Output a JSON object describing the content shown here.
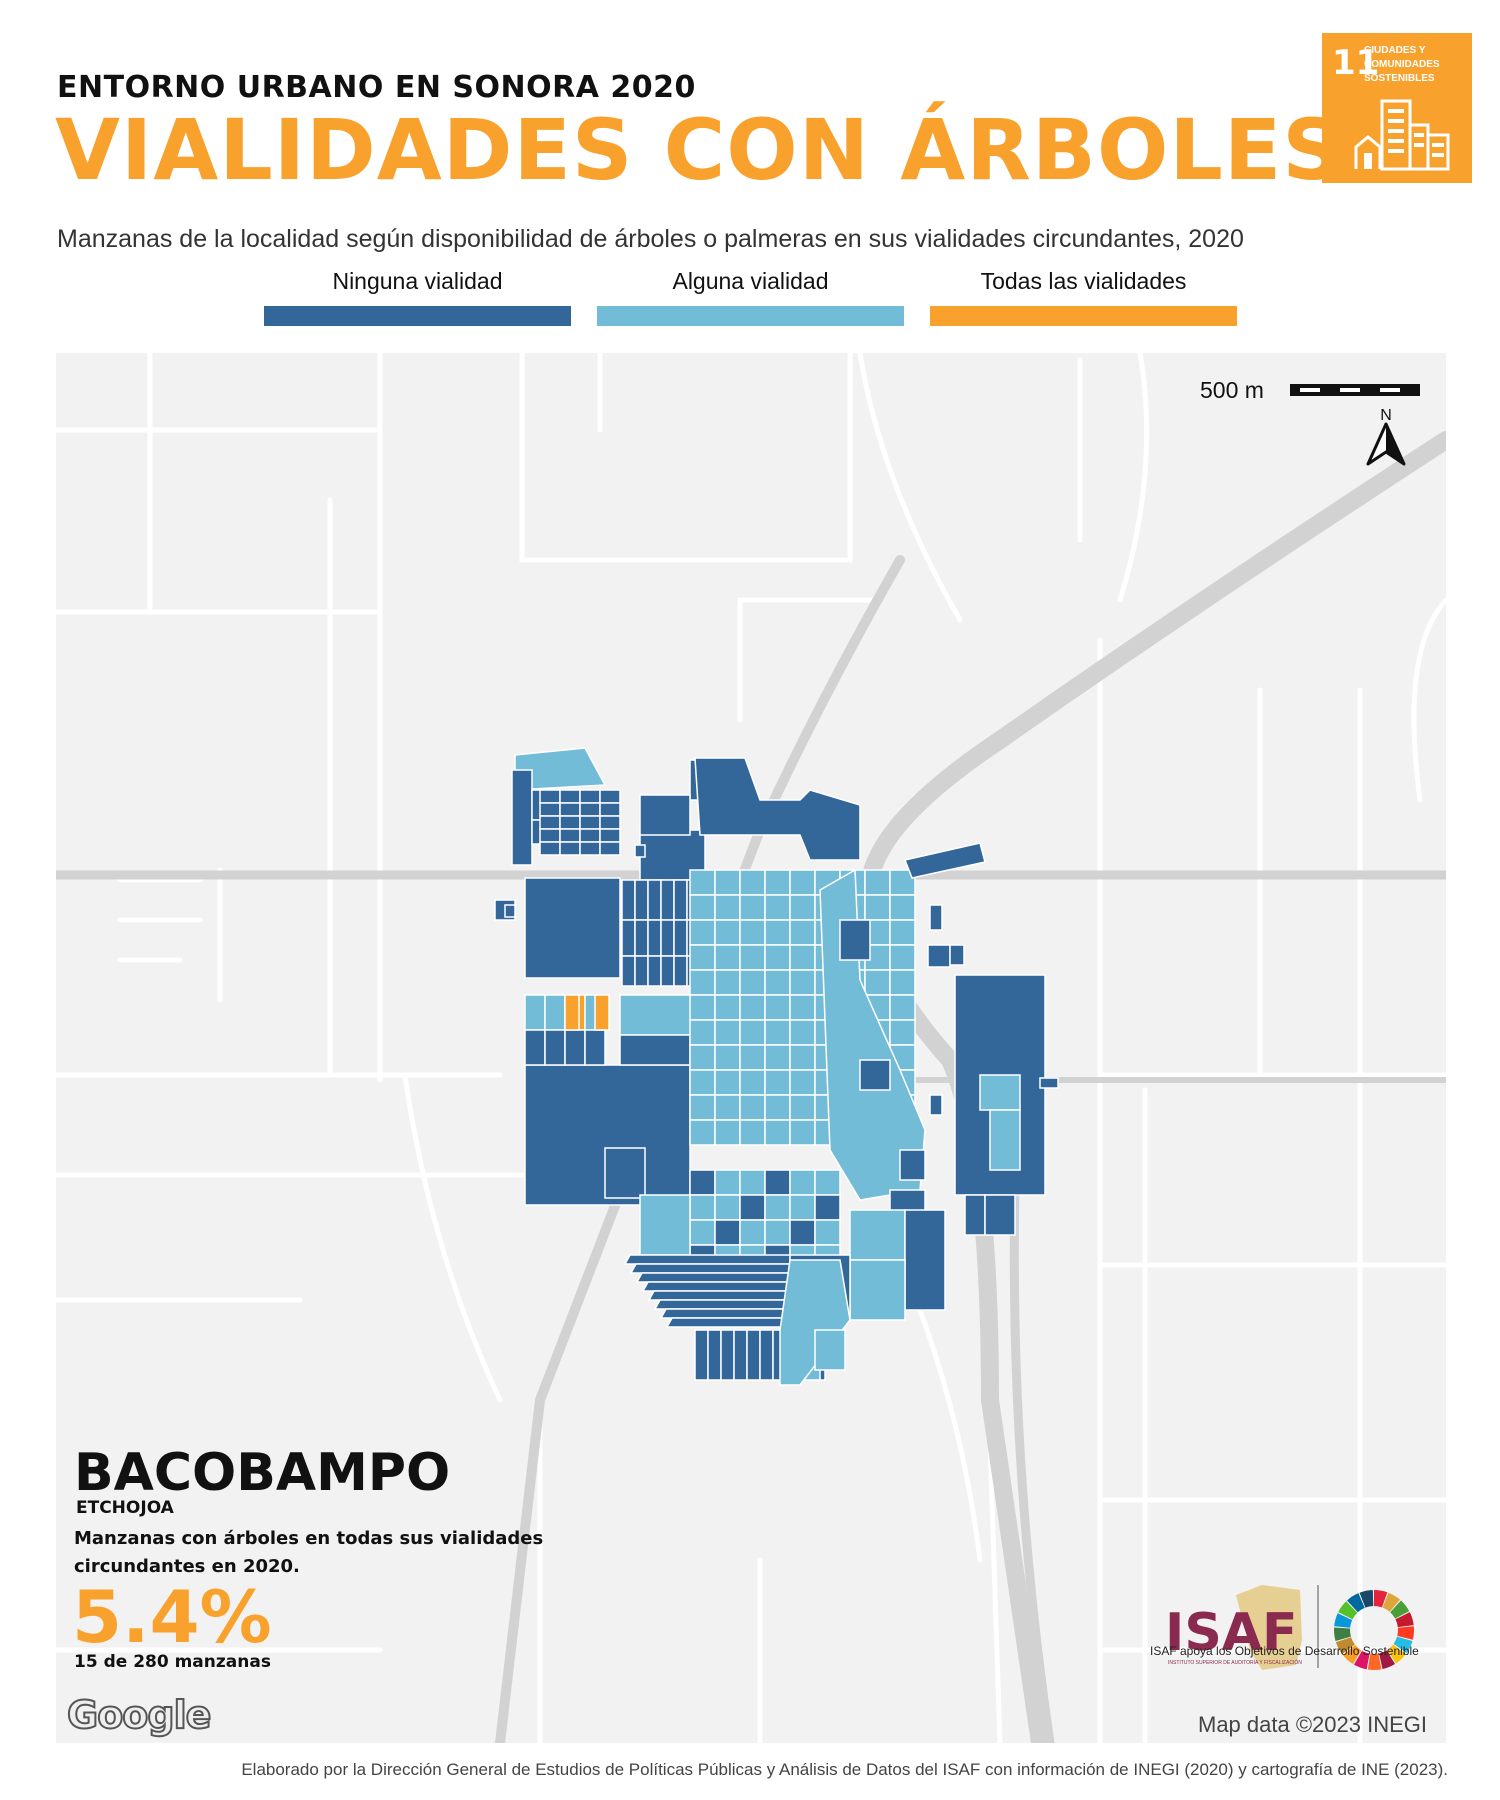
{
  "header": {
    "kicker": "ENTORNO URBANO EN SONORA 2020",
    "title": "VIALIDADES CON ÁRBOLES",
    "subtitle": "Manzanas de la localidad según disponibilidad de árboles o palmeras en sus vialidades circundantes, 2020"
  },
  "legend": [
    {
      "label": "Ninguna vialidad",
      "color": "#336799"
    },
    {
      "label": "Alguna vialidad",
      "color": "#73bcd7"
    },
    {
      "label": "Todas las vialidades",
      "color": "#f9a12d"
    }
  ],
  "sdg_badge": {
    "number": "11",
    "text_line1": "CIUDADES Y",
    "text_line2": "COMUNIDADES",
    "text_line3": "SOSTENIBLES",
    "color": "#f9a12d",
    "icon": "city-buildings-icon"
  },
  "map": {
    "scale_label": "500 m",
    "north_label": "N",
    "attribution": "Map data ©2023 INEGI",
    "google_logo": "Google",
    "background_color": "#f2f2f2",
    "road_color": "#ffffff",
    "highway_color": "#cfcfcf"
  },
  "locality": {
    "name": "BACOBAMPO",
    "municipality": "ETCHOJOA",
    "description": "Manzanas con árboles en todas sus vialidades circundantes en 2020.",
    "percentage": "5.4%",
    "count": "15 de 280 manzanas"
  },
  "logos": {
    "isaf": "ISAF",
    "isaf_subtitle": "INSTITUTO SUPERIOR DE AUDITORÍA Y FISCALIZACIÓN",
    "isaf_tagline": "ISAF apoya los Objetivos de Desarrollo Sostenible"
  },
  "footer": {
    "credit": "Elaborado por la Dirección General de Estudios de Políticas Públicas y Análisis de Datos del ISAF con información de INEGI (2020) y cartografía de INE (2023)."
  }
}
